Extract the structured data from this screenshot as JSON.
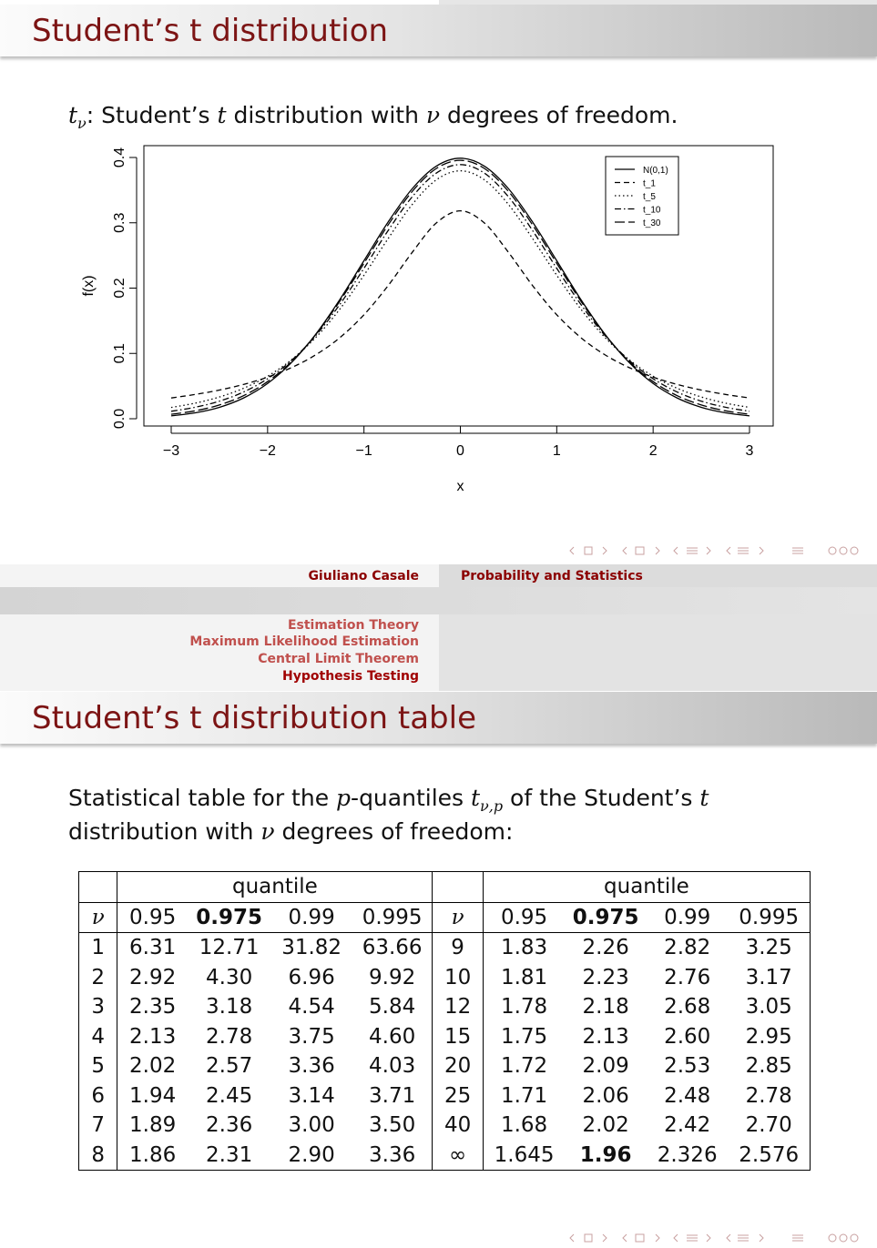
{
  "slide1": {
    "title": "Student’s t distribution",
    "intro": [
      "t",
      "ν",
      ": Student’s ",
      "t",
      " distribution with ",
      "ν",
      " degrees of freedom."
    ],
    "footer": {
      "author": "Giuliano Casale",
      "course": "Probability and Statistics"
    }
  },
  "chart_data": {
    "type": "line",
    "x": [
      -3,
      -2.75,
      -2.5,
      -2.25,
      -2,
      -1.75,
      -1.5,
      -1.25,
      -1,
      -0.75,
      -0.5,
      -0.25,
      0,
      0.25,
      0.5,
      0.75,
      1,
      1.25,
      1.5,
      1.75,
      2,
      2.25,
      2.5,
      2.75,
      3
    ],
    "series": [
      {
        "name": "N(0,1)",
        "color": "#000000",
        "dash": "solid",
        "values": [
          0.0044,
          0.0091,
          0.0175,
          0.0317,
          0.054,
          0.0863,
          0.1295,
          0.1826,
          0.242,
          0.3011,
          0.3521,
          0.3867,
          0.3989,
          0.3867,
          0.3521,
          0.3011,
          0.242,
          0.1826,
          0.1295,
          0.0863,
          0.054,
          0.0317,
          0.0175,
          0.0091,
          0.0044
        ]
      },
      {
        "name": "t_1",
        "color": "#000000",
        "dash": "dashed",
        "values": [
          0.0318,
          0.0372,
          0.0439,
          0.0525,
          0.0637,
          0.0784,
          0.0979,
          0.1242,
          0.1592,
          0.2037,
          0.2546,
          0.2996,
          0.3183,
          0.2996,
          0.2546,
          0.2037,
          0.1592,
          0.1242,
          0.0979,
          0.0784,
          0.0637,
          0.0525,
          0.0439,
          0.0372,
          0.0318
        ]
      },
      {
        "name": "t_5",
        "color": "#000000",
        "dash": "dotted",
        "values": [
          0.0173,
          0.0239,
          0.0333,
          0.0466,
          0.0651,
          0.0905,
          0.1245,
          0.1679,
          0.2197,
          0.2757,
          0.3279,
          0.3657,
          0.3796,
          0.3657,
          0.3279,
          0.2757,
          0.2197,
          0.1679,
          0.1245,
          0.0905,
          0.0651,
          0.0466,
          0.0333,
          0.0239,
          0.0173
        ]
      },
      {
        "name": "t_10",
        "color": "#000000",
        "dash": "dotdash",
        "values": [
          0.0114,
          0.0176,
          0.0269,
          0.0409,
          0.0612,
          0.0895,
          0.1274,
          0.1751,
          0.2303,
          0.288,
          0.3397,
          0.376,
          0.3891,
          0.376,
          0.3397,
          0.288,
          0.2303,
          0.1751,
          0.1274,
          0.0895,
          0.0612,
          0.0409,
          0.0269,
          0.0176,
          0.0114
        ]
      },
      {
        "name": "t_30",
        "color": "#000000",
        "dash": "longdash",
        "values": [
          0.0068,
          0.0121,
          0.0211,
          0.0353,
          0.0569,
          0.0876,
          0.129,
          0.1801,
          0.238,
          0.2966,
          0.3479,
          0.3831,
          0.3956,
          0.3831,
          0.3479,
          0.2966,
          0.238,
          0.1801,
          0.129,
          0.0876,
          0.0569,
          0.0353,
          0.0211,
          0.0121,
          0.0068
        ]
      }
    ],
    "xlabel": "x",
    "ylabel": "f(x)",
    "xlim": [
      -3,
      3
    ],
    "ylim": [
      0,
      0.4
    ],
    "xticks": [
      {
        "value": -3,
        "label": "−3"
      },
      {
        "value": -2,
        "label": "−2"
      },
      {
        "value": -1,
        "label": "−1"
      },
      0,
      1,
      2,
      3
    ],
    "yticks": [
      {
        "value": 0,
        "label": "0.0"
      },
      0.1,
      0.2,
      0.3,
      0.4
    ],
    "legend": "upper right"
  },
  "slide2": {
    "sections": [
      "Estimation Theory",
      "Maximum Likelihood Estimation",
      "Central Limit Theorem",
      "Hypothesis Testing"
    ],
    "title": "Student’s t distribution table",
    "intro": [
      "Statistical table for the ",
      "p",
      "-quantiles ",
      "t",
      "ν,p",
      " of the Student’s ",
      "t",
      "distribution with ",
      "ν",
      " degrees of freedom:"
    ],
    "table": {
      "group_header": "quantile",
      "header": [
        "ν",
        "0.95",
        "0.975",
        "0.99",
        "0.995",
        "ν",
        "0.95",
        "0.975",
        "0.99",
        "0.995"
      ],
      "rows": [
        [
          "1",
          "6.31",
          "12.71",
          "31.82",
          "63.66",
          "9",
          "1.83",
          "2.26",
          "2.82",
          "3.25"
        ],
        [
          "2",
          "2.92",
          "4.30",
          "6.96",
          "9.92",
          "10",
          "1.81",
          "2.23",
          "2.76",
          "3.17"
        ],
        [
          "3",
          "2.35",
          "3.18",
          "4.54",
          "5.84",
          "12",
          "1.78",
          "2.18",
          "2.68",
          "3.05"
        ],
        [
          "4",
          "2.13",
          "2.78",
          "3.75",
          "4.60",
          "15",
          "1.75",
          "2.13",
          "2.60",
          "2.95"
        ],
        [
          "5",
          "2.02",
          "2.57",
          "3.36",
          "4.03",
          "20",
          "1.72",
          "2.09",
          "2.53",
          "2.85"
        ],
        [
          "6",
          "1.94",
          "2.45",
          "3.14",
          "3.71",
          "25",
          "1.71",
          "2.06",
          "2.48",
          "2.78"
        ],
        [
          "7",
          "1.89",
          "2.36",
          "3.00",
          "3.50",
          "40",
          "1.68",
          "2.02",
          "2.42",
          "2.70"
        ],
        [
          "8",
          "1.86",
          "2.31",
          "2.90",
          "3.36",
          "∞",
          "1.645",
          "1.96",
          "2.326",
          "2.576"
        ]
      ]
    }
  }
}
